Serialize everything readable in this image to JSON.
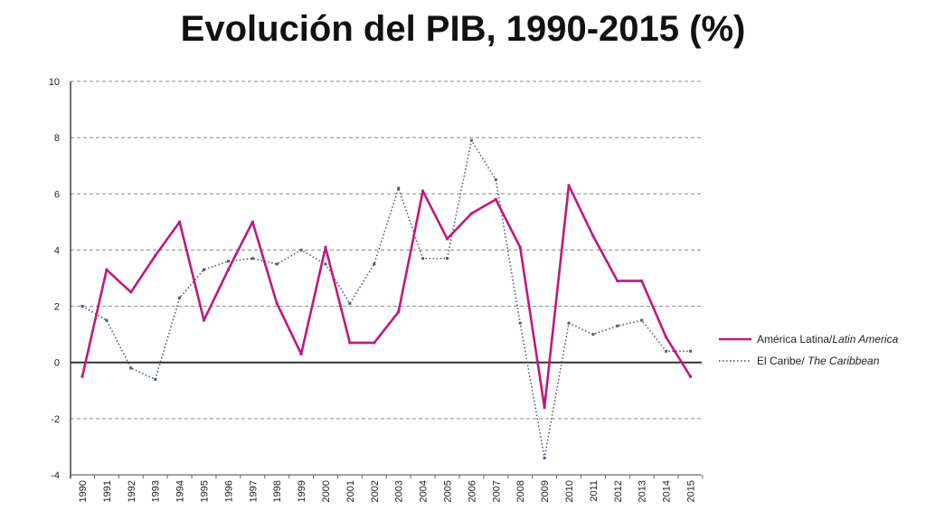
{
  "chart_data": {
    "type": "line",
    "title": "Evolución del PIB, 1990-2015 (%)",
    "xlabel": "",
    "ylabel": "",
    "ylim": [
      -4,
      10
    ],
    "yticks": [
      10,
      8,
      6,
      4,
      2,
      0,
      -2,
      -4
    ],
    "grid": true,
    "legend_position": "right",
    "categories": [
      "1990",
      "1991",
      "1992",
      "1993",
      "1994",
      "1995",
      "1996",
      "1997",
      "1998",
      "1999",
      "2000",
      "2001",
      "2002",
      "2003",
      "2004",
      "2005",
      "2006",
      "2007",
      "2008",
      "2009",
      "2010",
      "2011",
      "2012",
      "2013",
      "2014",
      "2015"
    ],
    "series": [
      {
        "name_main": "América Latina/",
        "name_alt": "Latin America",
        "color": "#c0187f",
        "style": "solid",
        "values": [
          -0.5,
          3.3,
          2.5,
          3.8,
          5.0,
          1.5,
          3.3,
          5.0,
          2.1,
          0.3,
          4.1,
          0.7,
          0.7,
          1.8,
          6.1,
          4.4,
          5.3,
          5.8,
          4.1,
          -1.6,
          6.3,
          4.5,
          2.9,
          2.9,
          0.9,
          -0.5
        ]
      },
      {
        "name_main": "El Caribe/",
        "name_alt": " The Caribbean",
        "color": "#4d5a7c",
        "style": "dotted",
        "values": [
          2.0,
          1.5,
          -0.2,
          -0.6,
          2.3,
          3.3,
          3.6,
          3.7,
          3.5,
          4.0,
          3.5,
          2.1,
          3.5,
          6.2,
          3.7,
          3.7,
          7.9,
          6.5,
          1.4,
          -3.4,
          1.4,
          1.0,
          1.3,
          1.5,
          0.4,
          0.4
        ]
      }
    ]
  }
}
